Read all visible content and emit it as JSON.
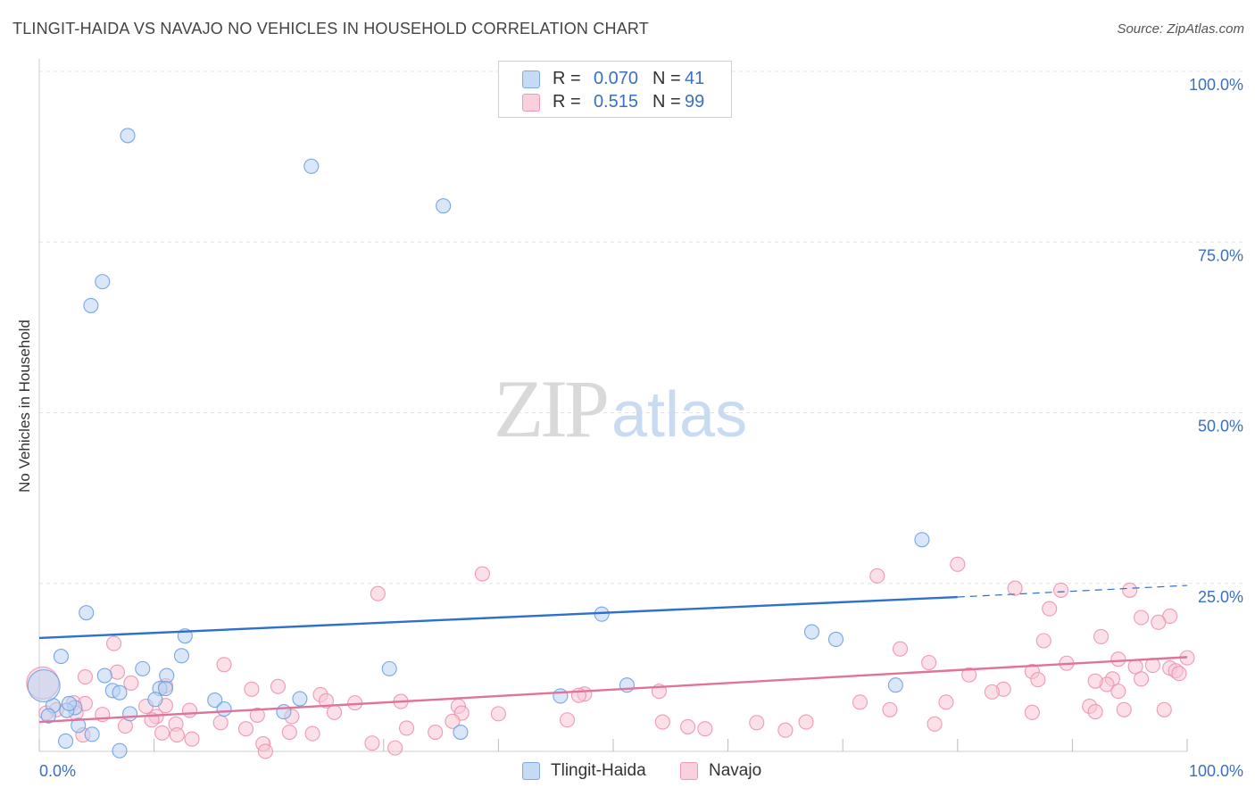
{
  "header": {
    "title": "TLINGIT-HAIDA VS NAVAJO NO VEHICLES IN HOUSEHOLD CORRELATION CHART",
    "source": "Source: ZipAtlas.com"
  },
  "watermark": {
    "zip": "ZIP",
    "atlas": "atlas"
  },
  "legend": {
    "rows": [
      {
        "r_label": "R =",
        "r_value": "0.070",
        "n_label": "N =",
        "n_value": "41",
        "color": "#a9c8ef"
      },
      {
        "r_label": "R =",
        "r_value": "0.515",
        "n_label": "N =",
        "n_value": "99",
        "color": "#f5b8cb"
      }
    ],
    "bottom": [
      {
        "label": "Tlingit-Haida",
        "color": "#a9c8ef"
      },
      {
        "label": "Navajo",
        "color": "#f5b8cb"
      }
    ]
  },
  "chart_data": {
    "type": "scatter",
    "title": "TLINGIT-HAIDA VS NAVAJO NO VEHICLES IN HOUSEHOLD CORRELATION CHART",
    "xlabel": "",
    "ylabel": "No Vehicles in Household",
    "xlim": [
      0,
      100
    ],
    "ylim": [
      0,
      100
    ],
    "x_tick_labels": [
      "0.0%",
      "100.0%"
    ],
    "y_tick_labels": [
      "100.0%",
      "75.0%",
      "50.0%",
      "25.0%"
    ],
    "y_ticks": [
      100,
      75,
      50,
      25
    ],
    "grid": true,
    "series": [
      {
        "name": "Tlingit-Haida",
        "color": "#6a9fe0",
        "fill": "#b9d3f2",
        "line_color": "#2f6fce",
        "trend": {
          "x0": 0,
          "y0": 17.0,
          "x1": 80,
          "y1": 23.0,
          "dash_to_x": 100,
          "dash_to_y": 24.7
        },
        "points": [
          [
            7.7,
            90.6
          ],
          [
            23.7,
            86.1
          ],
          [
            35.2,
            80.3
          ],
          [
            5.5,
            69.2
          ],
          [
            4.5,
            65.7
          ],
          [
            76.9,
            31.4
          ],
          [
            4.1,
            20.7
          ],
          [
            49.0,
            20.5
          ],
          [
            12.7,
            17.3
          ],
          [
            67.3,
            17.9
          ],
          [
            69.4,
            16.8
          ],
          [
            1.9,
            14.3
          ],
          [
            12.4,
            14.4
          ],
          [
            9.0,
            12.5
          ],
          [
            30.5,
            12.5
          ],
          [
            5.7,
            11.5
          ],
          [
            11.1,
            11.5
          ],
          [
            6.4,
            9.3
          ],
          [
            10.5,
            9.6
          ],
          [
            11.0,
            9.6
          ],
          [
            74.6,
            10.1
          ],
          [
            51.2,
            10.1
          ],
          [
            7.0,
            9.0
          ],
          [
            10.1,
            8.0
          ],
          [
            15.3,
            7.9
          ],
          [
            22.7,
            8.1
          ],
          [
            45.4,
            8.5
          ],
          [
            1.2,
            7.1
          ],
          [
            3.1,
            6.8
          ],
          [
            2.4,
            6.4
          ],
          [
            16.1,
            6.6
          ],
          [
            21.3,
            6.2
          ],
          [
            7.9,
            5.9
          ],
          [
            0.8,
            5.6
          ],
          [
            3.4,
            4.2
          ],
          [
            4.6,
            2.9
          ],
          [
            36.7,
            3.2
          ],
          [
            2.3,
            1.9
          ],
          [
            7.0,
            0.5
          ],
          [
            0.4,
            10.0
          ],
          [
            2.6,
            7.4
          ]
        ]
      },
      {
        "name": "Navajo",
        "color": "#ee8fae",
        "fill": "#f8c6d6",
        "line_color": "#e0739a",
        "trend": {
          "x0": 0,
          "y0": 4.7,
          "x1": 100,
          "y1": 14.2
        },
        "points": [
          [
            38.6,
            26.4
          ],
          [
            73.0,
            26.1
          ],
          [
            80.0,
            27.8
          ],
          [
            29.5,
            23.5
          ],
          [
            85.0,
            24.3
          ],
          [
            89.0,
            24.0
          ],
          [
            95.0,
            24.0
          ],
          [
            88.0,
            21.3
          ],
          [
            96.0,
            20.0
          ],
          [
            98.5,
            20.2
          ],
          [
            97.5,
            19.3
          ],
          [
            6.5,
            16.2
          ],
          [
            75.0,
            15.4
          ],
          [
            92.5,
            17.2
          ],
          [
            87.5,
            16.6
          ],
          [
            94.0,
            13.9
          ],
          [
            100.0,
            14.1
          ],
          [
            16.1,
            13.1
          ],
          [
            77.5,
            13.4
          ],
          [
            89.5,
            13.3
          ],
          [
            95.5,
            12.8
          ],
          [
            97.0,
            13.0
          ],
          [
            98.5,
            12.6
          ],
          [
            86.5,
            12.1
          ],
          [
            99.0,
            12.2
          ],
          [
            81.0,
            11.6
          ],
          [
            99.3,
            11.8
          ],
          [
            4.0,
            11.3
          ],
          [
            87.0,
            10.9
          ],
          [
            93.5,
            11.0
          ],
          [
            96.0,
            11.0
          ],
          [
            93.0,
            10.2
          ],
          [
            92.0,
            10.7
          ],
          [
            6.8,
            12.0
          ],
          [
            8.0,
            10.4
          ],
          [
            11.0,
            10.0
          ],
          [
            18.5,
            9.5
          ],
          [
            20.8,
            9.9
          ],
          [
            24.5,
            8.7
          ],
          [
            54.0,
            9.2
          ],
          [
            47.5,
            8.8
          ],
          [
            47.0,
            8.6
          ],
          [
            84.0,
            9.5
          ],
          [
            83.0,
            9.1
          ],
          [
            94.0,
            9.2
          ],
          [
            3.0,
            7.5
          ],
          [
            4.0,
            7.4
          ],
          [
            9.3,
            7.0
          ],
          [
            11.0,
            7.1
          ],
          [
            25.0,
            7.8
          ],
          [
            27.5,
            7.5
          ],
          [
            31.5,
            7.7
          ],
          [
            36.5,
            7.0
          ],
          [
            71.5,
            7.6
          ],
          [
            79.0,
            7.6
          ],
          [
            91.5,
            7.0
          ],
          [
            94.5,
            6.5
          ],
          [
            98.0,
            6.5
          ],
          [
            92.0,
            6.2
          ],
          [
            1.5,
            6.5
          ],
          [
            3.2,
            6.0
          ],
          [
            5.5,
            5.8
          ],
          [
            10.2,
            5.5
          ],
          [
            13.1,
            6.4
          ],
          [
            19.0,
            5.7
          ],
          [
            22.0,
            5.5
          ],
          [
            25.7,
            6.1
          ],
          [
            36.8,
            6.0
          ],
          [
            40.0,
            5.9
          ],
          [
            46.0,
            5.0
          ],
          [
            54.3,
            4.7
          ],
          [
            56.5,
            4.0
          ],
          [
            66.8,
            4.7
          ],
          [
            74.1,
            6.5
          ],
          [
            78.0,
            4.4
          ],
          [
            86.5,
            6.1
          ],
          [
            0.6,
            6.0
          ],
          [
            7.5,
            4.1
          ],
          [
            9.8,
            5.0
          ],
          [
            11.9,
            4.4
          ],
          [
            15.8,
            4.6
          ],
          [
            18.0,
            3.7
          ],
          [
            21.8,
            3.2
          ],
          [
            23.8,
            3.0
          ],
          [
            32.0,
            3.8
          ],
          [
            34.5,
            3.2
          ],
          [
            36.0,
            4.8
          ],
          [
            58.0,
            3.7
          ],
          [
            62.5,
            4.6
          ],
          [
            65.0,
            3.5
          ],
          [
            3.8,
            2.8
          ],
          [
            10.7,
            3.1
          ],
          [
            12.0,
            2.8
          ],
          [
            13.3,
            2.2
          ],
          [
            19.5,
            1.5
          ],
          [
            29.0,
            1.6
          ],
          [
            31.0,
            0.9
          ],
          [
            19.7,
            0.4
          ],
          [
            0.3,
            10.4
          ]
        ]
      }
    ]
  }
}
